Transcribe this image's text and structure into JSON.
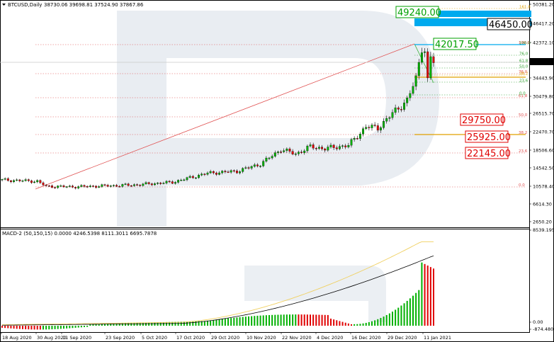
{
  "header": {
    "symbol": "BTCUSD,Daily",
    "ohlc": "38730.06 39698.81 37524.90 37867.86"
  },
  "macd_header": "MACD-2 (50,150,15) 0.0000 4246.5398 8111.3011 6695.7878",
  "price_axis": [
    "50381.20",
    "46417.20",
    "42372.10",
    "37867.86",
    "34443.90",
    "30479.80",
    "26515.70",
    "22470.70",
    "18506.60",
    "14542.50",
    "10578.40",
    "6614.30",
    "2650.20"
  ],
  "current_price": "37867.86",
  "macd_axis": [
    "8539.1955",
    "0.00",
    "-874.4809"
  ],
  "date_axis": [
    "18 Aug 2020",
    "30 Aug 2020",
    "11 Sep 2020",
    "23 Sep 2020",
    "5 Oct 2020",
    "17 Oct 2020",
    "29 Oct 2020",
    "10 Nov 2020",
    "22 Nov 2020",
    "4 Dec 2020",
    "16 Dec 2020",
    "29 Dec 2020",
    "11 Jan 2021"
  ],
  "levels": {
    "high": "42017.50",
    "supports": [
      "29750.00",
      "25925.00",
      "22145.00"
    ],
    "targets": [
      "49240.00",
      "46450.00"
    ]
  },
  "fib_long": [
    "100.0",
    "76.0",
    "61.8",
    "50.0",
    "38.2",
    "23.6",
    "0.0"
  ],
  "fib_short": [
    "161.8",
    "138.2",
    "100.0",
    "76.0",
    "61.8",
    "50.0",
    "38.2",
    "23.6",
    "0.0"
  ],
  "colors": {
    "bull": "#00b000",
    "bear": "#e00000",
    "level_red": "#e00000",
    "level_green": "#00a000",
    "target_fill": "#00aaee",
    "signal": "#f0d060",
    "macd_line": "#000000"
  },
  "chart_data": {
    "type": "candlestick",
    "title": "BTCUSD,Daily",
    "ohlc_last": {
      "open": 38730.06,
      "high": 39698.81,
      "low": 37524.9,
      "close": 37867.86
    },
    "x": [
      "18 Aug 2020",
      "30 Aug 2020",
      "11 Sep 2020",
      "23 Sep 2020",
      "5 Oct 2020",
      "17 Oct 2020",
      "29 Oct 2020",
      "10 Nov 2020",
      "22 Nov 2020",
      "4 Dec 2020",
      "16 Dec 2020",
      "29 Dec 2020",
      "11 Jan 2021"
    ],
    "close_approx": [
      11800,
      11500,
      10400,
      10500,
      10700,
      11300,
      13300,
      15300,
      18500,
      19100,
      19400,
      27000,
      35500
    ],
    "ylim": [
      1500,
      51500
    ],
    "price_levels": {
      "high": 42017.5,
      "resistance_targets": [
        49240.0,
        46450.0
      ],
      "supports": [
        29750.0,
        25925.0,
        22145.0
      ]
    },
    "macd": {
      "params": "50,150,15",
      "last_hist": 6695.7878,
      "signal": 8111.3011,
      "ylim": [
        -874.4809,
        8539.1955
      ]
    }
  }
}
